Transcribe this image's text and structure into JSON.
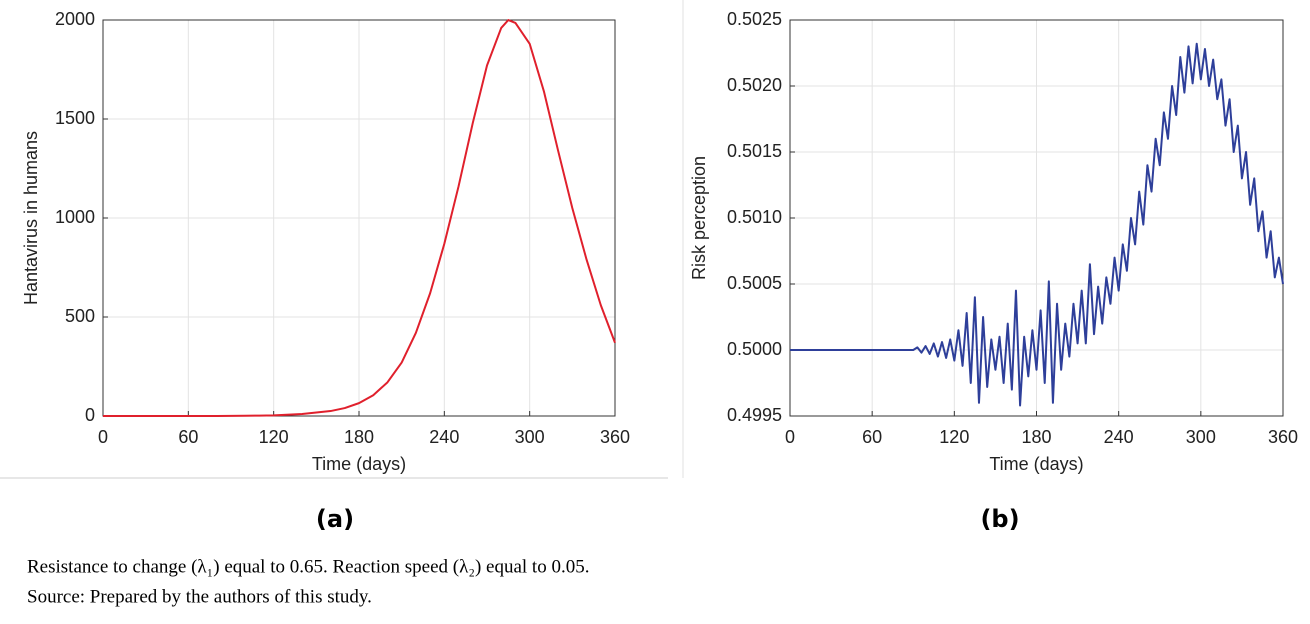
{
  "chart_data": [
    {
      "type": "line",
      "xlabel": "Time (days)",
      "ylabel": "Hantavirus in humans",
      "color": "#e0202c",
      "x": [
        0,
        20,
        40,
        60,
        80,
        100,
        110,
        120,
        140,
        160,
        170,
        180,
        190,
        200,
        210,
        220,
        230,
        240,
        250,
        260,
        270,
        280,
        285,
        290,
        300,
        310,
        320,
        330,
        340,
        350,
        360
      ],
      "values": [
        0,
        0,
        0,
        0,
        0,
        1,
        2,
        3,
        10,
        25,
        40,
        65,
        105,
        170,
        270,
        420,
        620,
        870,
        1160,
        1480,
        1770,
        1960,
        2000,
        1985,
        1880,
        1640,
        1340,
        1050,
        790,
        560,
        370
      ],
      "xlim": [
        0,
        360
      ],
      "xticks": [
        0,
        60,
        120,
        180,
        240,
        300,
        360
      ],
      "ylim": [
        0,
        2000
      ],
      "yticks": [
        0,
        500,
        1000,
        1500,
        2000
      ],
      "grid": true
    },
    {
      "type": "line",
      "xlabel": "Time (days)",
      "ylabel": "Risk perception",
      "color": "#2e3f9a",
      "x": [
        0,
        90,
        93,
        96,
        99,
        102,
        105,
        108,
        111,
        114,
        117,
        120,
        123,
        126,
        129,
        132,
        135,
        138,
        141,
        144,
        147,
        150,
        153,
        156,
        159,
        162,
        165,
        168,
        171,
        174,
        177,
        180,
        183,
        186,
        189,
        192,
        195,
        198,
        201,
        204,
        207,
        210,
        213,
        216,
        219,
        222,
        225,
        228,
        231,
        234,
        237,
        240,
        243,
        246,
        249,
        252,
        255,
        258,
        261,
        264,
        267,
        270,
        273,
        276,
        279,
        282,
        285,
        288,
        291,
        294,
        297,
        300,
        303,
        306,
        309,
        312,
        315,
        318,
        321,
        324,
        327,
        330,
        333,
        336,
        339,
        342,
        345,
        348,
        351,
        354,
        357,
        360
      ],
      "values": [
        0.5,
        0.5,
        0.50002,
        0.49998,
        0.50003,
        0.49997,
        0.50005,
        0.49995,
        0.50006,
        0.49994,
        0.50008,
        0.49992,
        0.50015,
        0.49988,
        0.50028,
        0.49975,
        0.5004,
        0.4996,
        0.50025,
        0.49972,
        0.50008,
        0.49985,
        0.5001,
        0.49975,
        0.5002,
        0.4997,
        0.50045,
        0.49958,
        0.5001,
        0.4998,
        0.50015,
        0.49985,
        0.5003,
        0.49975,
        0.50052,
        0.4996,
        0.50035,
        0.49985,
        0.5002,
        0.49995,
        0.50035,
        0.50005,
        0.50045,
        0.50005,
        0.50065,
        0.50012,
        0.50048,
        0.5002,
        0.50055,
        0.50035,
        0.5007,
        0.50045,
        0.5008,
        0.5006,
        0.501,
        0.5008,
        0.5012,
        0.50095,
        0.5014,
        0.5012,
        0.5016,
        0.5014,
        0.5018,
        0.5016,
        0.502,
        0.50178,
        0.50222,
        0.50195,
        0.5023,
        0.50202,
        0.50232,
        0.50205,
        0.50228,
        0.502,
        0.5022,
        0.5019,
        0.50205,
        0.5017,
        0.5019,
        0.5015,
        0.5017,
        0.5013,
        0.5015,
        0.5011,
        0.5013,
        0.5009,
        0.50105,
        0.5007,
        0.5009,
        0.50055,
        0.5007,
        0.5005
      ],
      "xlim": [
        0,
        360
      ],
      "xticks": [
        0,
        60,
        120,
        180,
        240,
        300,
        360
      ],
      "ylim": [
        0.4995,
        0.5025
      ],
      "yticks": [
        {
          "value": 0.4995,
          "label": "0.4995"
        },
        {
          "value": 0.5,
          "label": "0.5000"
        },
        {
          "value": 0.5005,
          "label": "0.5005"
        },
        {
          "value": 0.501,
          "label": "0.5010"
        },
        {
          "value": 0.5015,
          "label": "0.5015"
        },
        {
          "value": 0.502,
          "label": "0.5020"
        },
        {
          "value": 0.5025,
          "label": "0.5025"
        }
      ],
      "grid": true
    }
  ],
  "panels": [
    "(a)",
    "(b)"
  ],
  "caption": [
    "Resistance to change (λ₁) equal to 0.65. Reaction speed (λ₂) equal to 0.05.",
    "Source: Prepared by the authors of this study."
  ]
}
